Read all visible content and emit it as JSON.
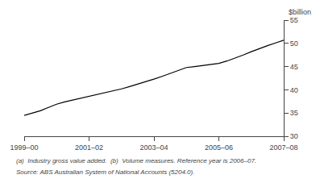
{
  "chart_data": {
    "type": "line",
    "y_label": "$billion",
    "categories": [
      "1999–00",
      null,
      null,
      null,
      null,
      null,
      null,
      null,
      "2001–02",
      null,
      null,
      null,
      null,
      null,
      null,
      null,
      "2003–04",
      null,
      null,
      null,
      null,
      null,
      null,
      null,
      "2005–06",
      null,
      null,
      null,
      null,
      null,
      null,
      null,
      "2007–08"
    ],
    "values": [
      34.5,
      35.0,
      35.5,
      36.2,
      36.9,
      37.4,
      37.8,
      38.1,
      38.5,
      38.9,
      39.3,
      39.8,
      40.2,
      40.7,
      41.2,
      41.8,
      42.3,
      42.9,
      43.5,
      44.1,
      44.8,
      45.0,
      45.2,
      45.4,
      45.7,
      46.2,
      46.8,
      47.5,
      48.2,
      48.9,
      49.5,
      50.1,
      50.7
    ],
    "color": "#000000",
    "ylim": [
      30,
      55
    ],
    "yticks": [
      30,
      35,
      40,
      45,
      50,
      55
    ],
    "grid": false,
    "annotations": [
      "(a)  Industry gross value added.  (b)  Volume measures. Reference year is 2006–07.",
      "Source: ABS Australian System of National Accounts (5204.0)."
    ]
  }
}
